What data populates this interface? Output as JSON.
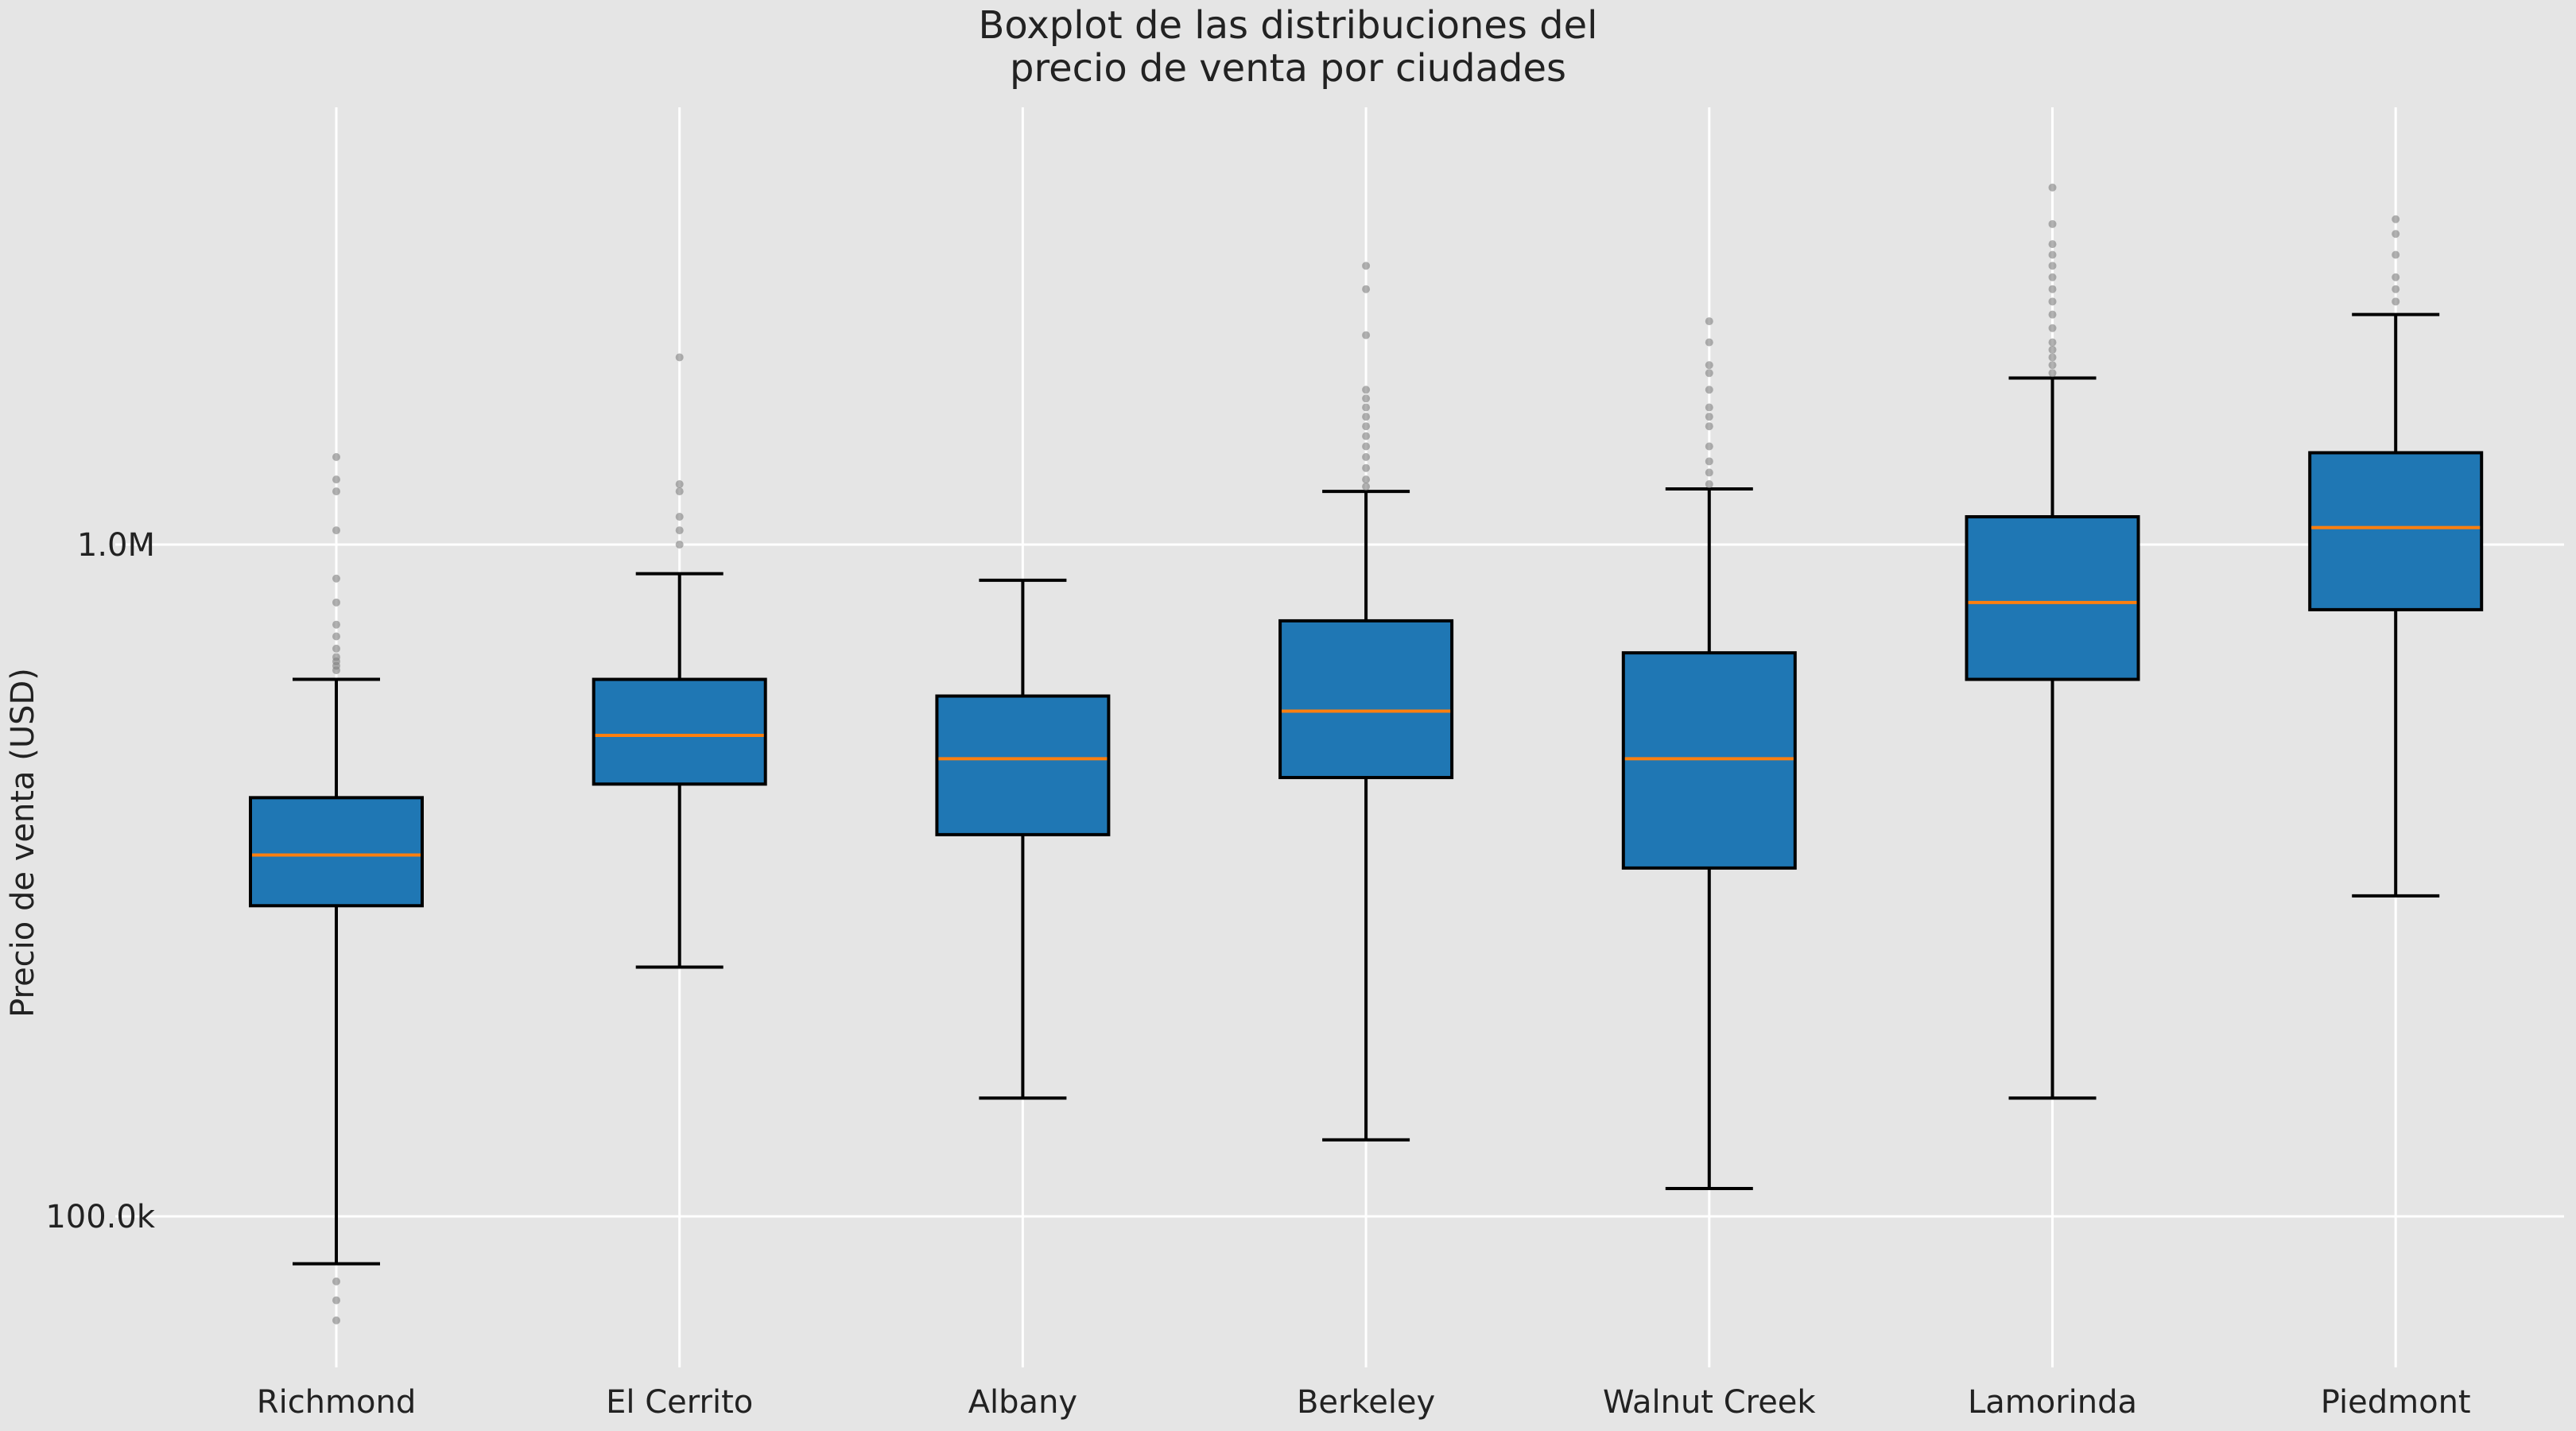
{
  "chart_data": {
    "type": "boxplot",
    "title_lines": [
      "Boxplot de las distribuciones del",
      "precio de venta por ciudades"
    ],
    "xlabel": "",
    "ylabel": "Precio de venta (USD)",
    "yscale": "log",
    "ylim": [
      60000,
      4000000
    ],
    "yticks": [
      {
        "value": 100000,
        "label": "100.0k"
      },
      {
        "value": 1000000,
        "label": "1.0M"
      }
    ],
    "grid": true,
    "colors": {
      "background": "#e5e5e5",
      "grid": "#ffffff",
      "box": "#1f77b4",
      "median": "#ff7f0e",
      "outline": "#000000",
      "flier": "#7f7f7f"
    },
    "categories": [
      "Richmond",
      "El Cerrito",
      "Albany",
      "Berkeley",
      "Walnut Creek",
      "Lamorinda",
      "Piedmont"
    ],
    "boxes": [
      {
        "name": "Richmond",
        "whisker_low": 85000,
        "q1": 290000,
        "median": 345000,
        "q3": 420000,
        "whisker_high": 630000,
        "fliers": [
          80000,
          75000,
          70000,
          650000,
          660000,
          670000,
          680000,
          700000,
          730000,
          760000,
          820000,
          890000,
          1050000,
          1200000,
          1250000,
          1350000
        ]
      },
      {
        "name": "El Cerrito",
        "whisker_low": 235000,
        "q1": 440000,
        "median": 520000,
        "q3": 630000,
        "whisker_high": 905000,
        "fliers": [
          1000000,
          1050000,
          1100000,
          1200000,
          1230000,
          1900000
        ]
      },
      {
        "name": "Albany",
        "whisker_low": 150000,
        "q1": 370000,
        "median": 480000,
        "q3": 595000,
        "whisker_high": 885000,
        "fliers": []
      },
      {
        "name": "Berkeley",
        "whisker_low": 130000,
        "q1": 450000,
        "median": 565000,
        "q3": 770000,
        "whisker_high": 1200000,
        "fliers": [
          1220000,
          1250000,
          1300000,
          1350000,
          1400000,
          1450000,
          1500000,
          1550000,
          1600000,
          1650000,
          1700000,
          2050000,
          2400000,
          2600000
        ]
      },
      {
        "name": "Walnut Creek",
        "whisker_low": 110000,
        "q1": 330000,
        "median": 480000,
        "q3": 690000,
        "whisker_high": 1210000,
        "fliers": [
          1230000,
          1280000,
          1330000,
          1400000,
          1500000,
          1550000,
          1600000,
          1700000,
          1800000,
          1850000,
          2000000,
          2150000
        ]
      },
      {
        "name": "Lamorinda",
        "whisker_low": 150000,
        "q1": 630000,
        "median": 820000,
        "q3": 1100000,
        "whisker_high": 1770000,
        "fliers": [
          1800000,
          1850000,
          1900000,
          1950000,
          2000000,
          2100000,
          2200000,
          2300000,
          2400000,
          2500000,
          2600000,
          2700000,
          2800000,
          3000000,
          3400000
        ]
      },
      {
        "name": "Piedmont",
        "whisker_low": 300000,
        "q1": 800000,
        "median": 1060000,
        "q3": 1370000,
        "whisker_high": 2200000,
        "fliers": [
          2300000,
          2400000,
          2500000,
          2700000,
          2900000,
          3050000
        ]
      }
    ]
  }
}
